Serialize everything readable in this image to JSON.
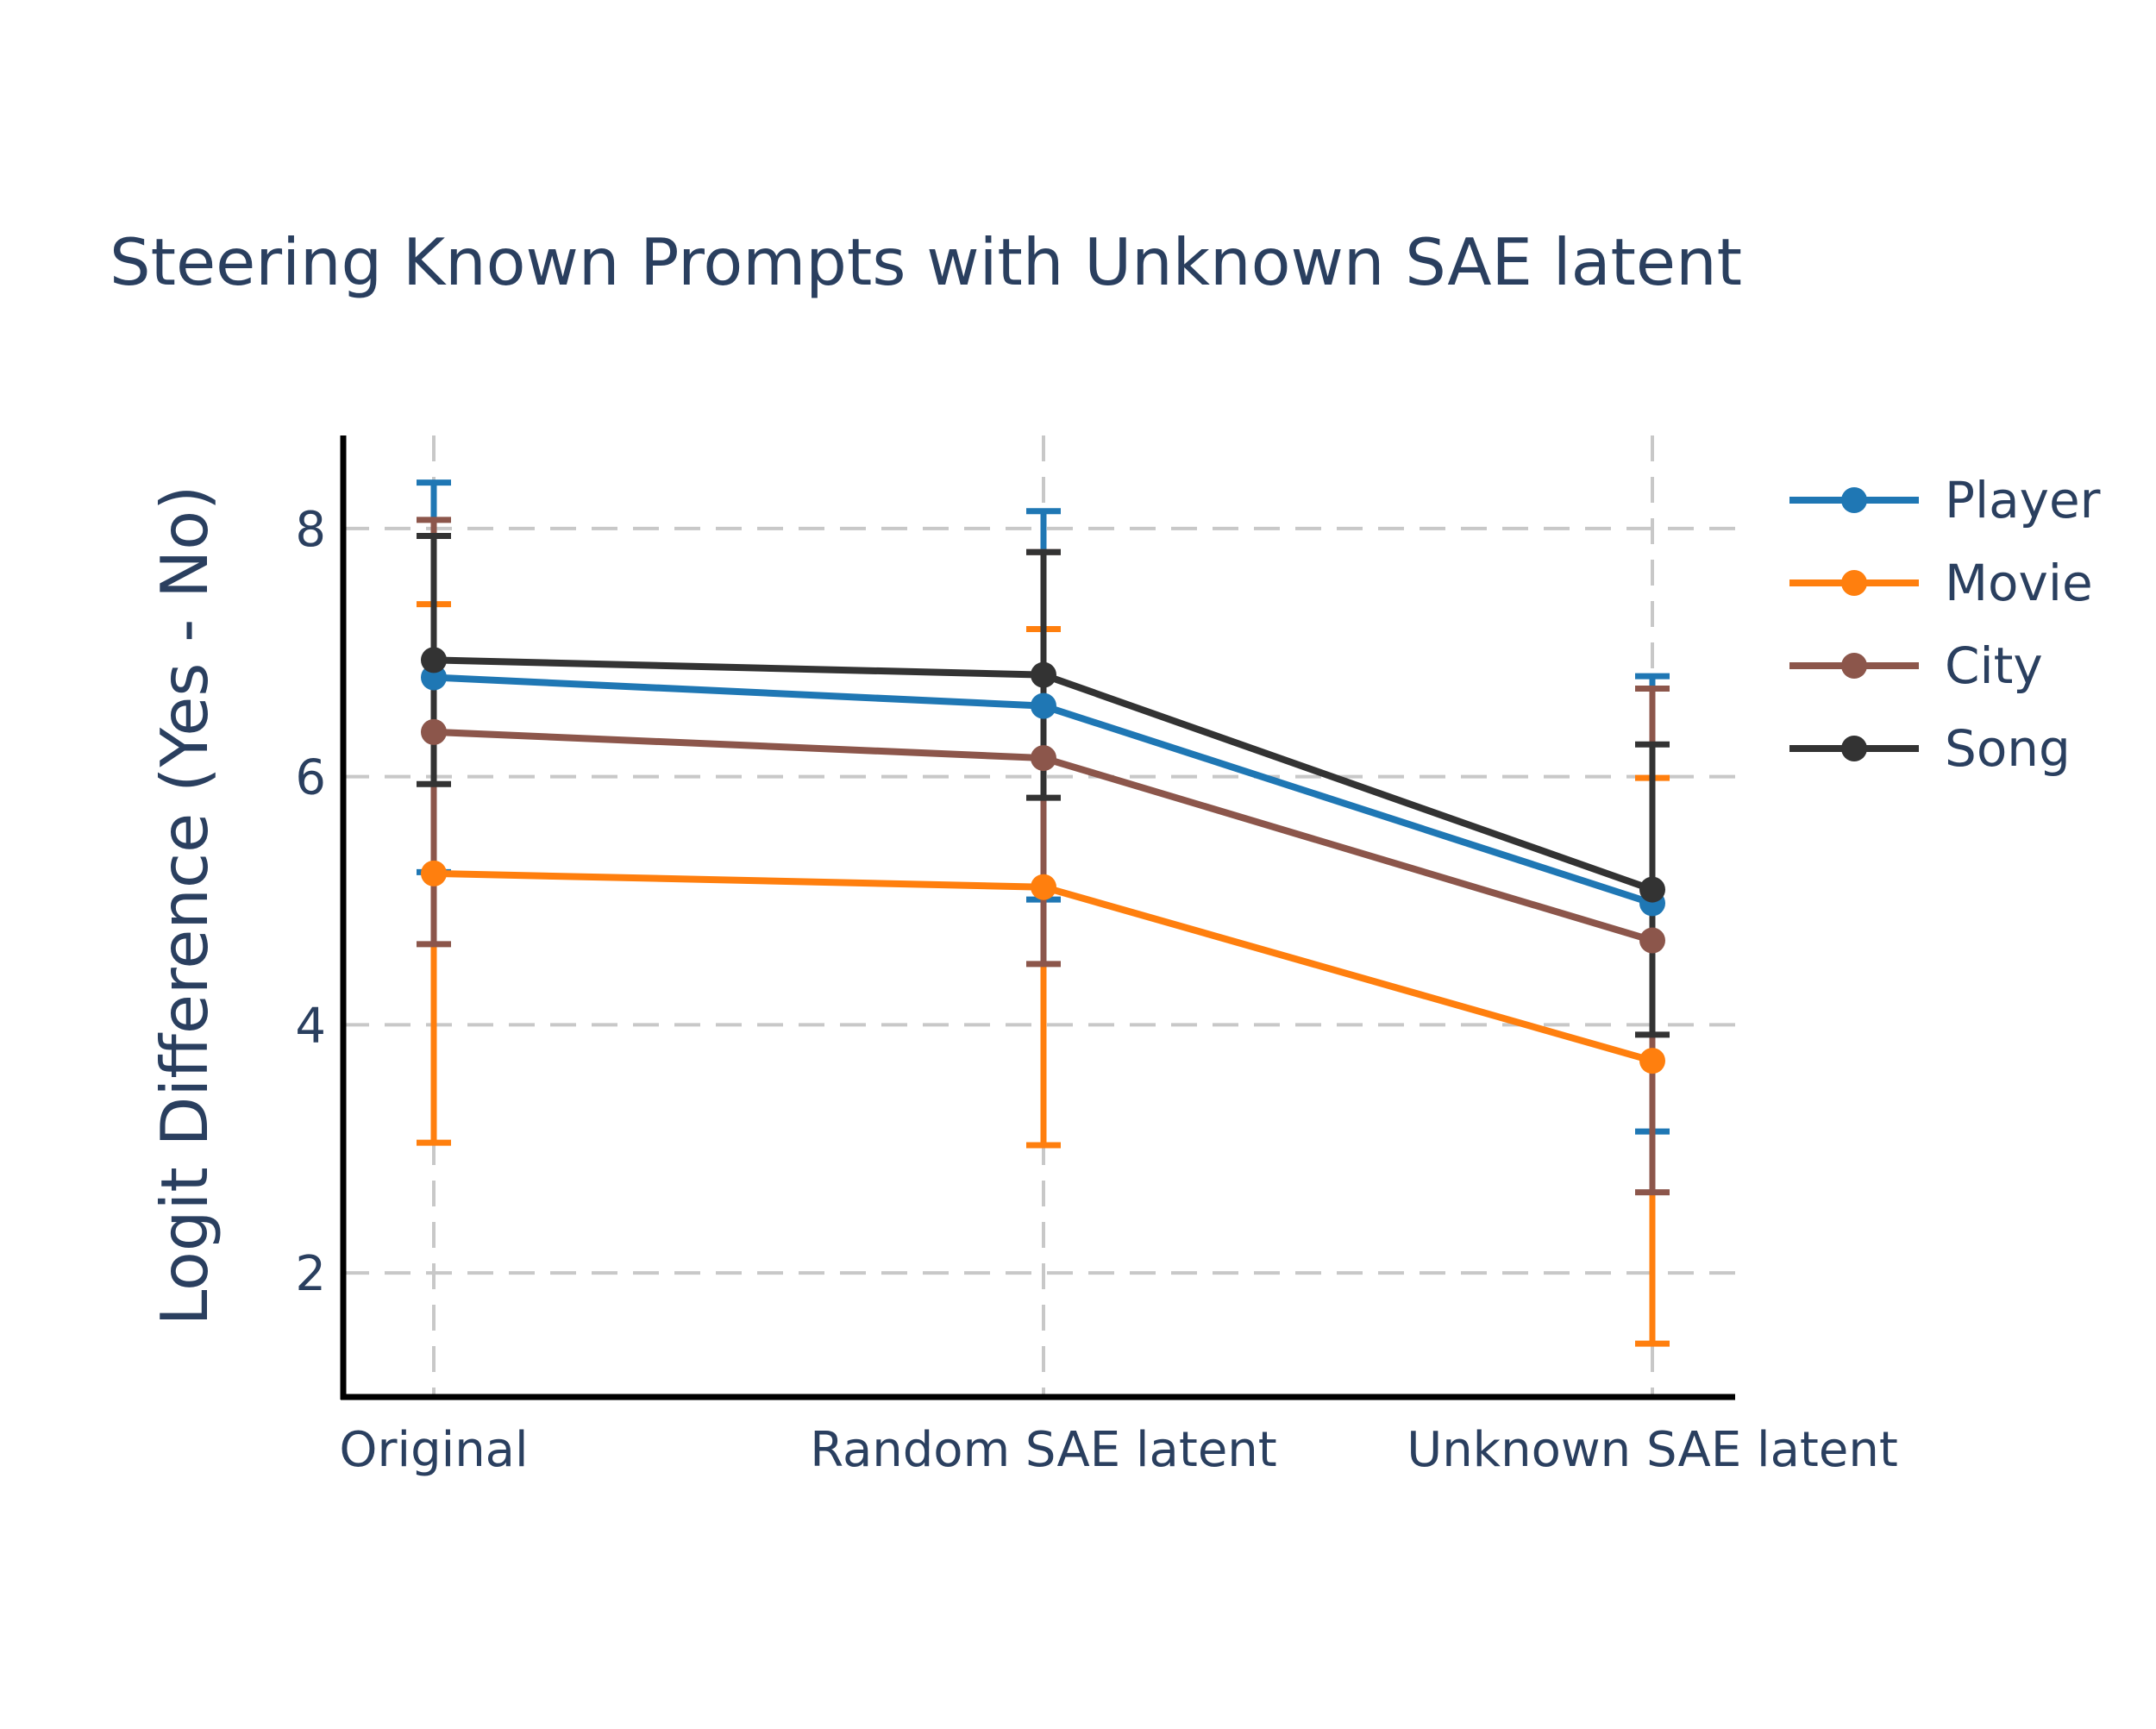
{
  "chart_data": {
    "type": "line",
    "title": "Steering Known Prompts with Unknown SAE latent",
    "xlabel": "",
    "ylabel": "Logit Difference (Yes - No)",
    "categories": [
      "Original",
      "Random SAE latent",
      "Unknown SAE latent"
    ],
    "ylim": [
      1.0,
      8.75
    ],
    "yticks": [
      2,
      4,
      6,
      8
    ],
    "grid": true,
    "legend_position": "top-right",
    "series": [
      {
        "name": "Player",
        "color": "#1f77b4",
        "values": [
          6.8,
          6.57,
          4.98
        ],
        "error_low": [
          5.23,
          5.01,
          3.14
        ],
        "error_high": [
          8.37,
          8.14,
          6.81
        ]
      },
      {
        "name": "Movie",
        "color": "#ff7f0e",
        "values": [
          5.22,
          5.11,
          3.71
        ],
        "error_low": [
          3.05,
          3.03,
          1.43
        ],
        "error_high": [
          7.39,
          7.19,
          5.99
        ]
      },
      {
        "name": "City",
        "color": "#8c564b",
        "values": [
          6.36,
          6.15,
          4.68
        ],
        "error_low": [
          4.65,
          4.49,
          2.65
        ],
        "error_high": [
          8.07,
          7.81,
          6.71
        ]
      },
      {
        "name": "Song",
        "color": "#333333",
        "values": [
          6.94,
          6.82,
          5.09
        ],
        "error_low": [
          5.94,
          5.83,
          3.92
        ],
        "error_high": [
          7.94,
          7.81,
          6.26
        ]
      }
    ]
  }
}
